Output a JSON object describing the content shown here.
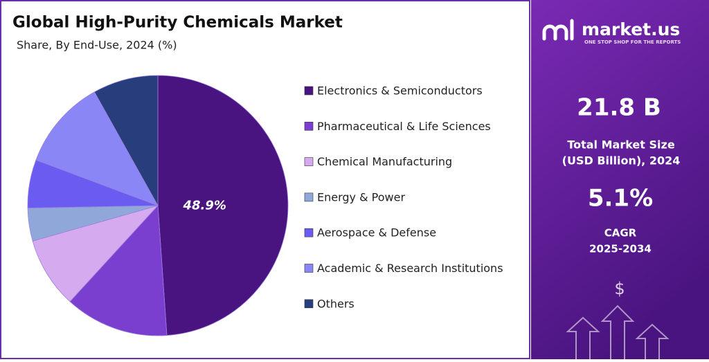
{
  "chart_data": {
    "type": "pie",
    "title": "Global High-Purity Chemicals Market",
    "subtitle": "Share, By End-Use, 2024 (%)",
    "categories": [
      "Electronics & Semiconductors",
      "Pharmaceutical & Life Sciences",
      "Chemical Manufacturing",
      "Energy & Power",
      "Aerospace & Defense",
      "Academic & Research Institutions",
      "Others"
    ],
    "values": [
      48.9,
      12.9,
      8.8,
      4.1,
      6.0,
      11.2,
      8.1
    ],
    "value_labels": [
      "48.9%",
      null,
      null,
      null,
      null,
      null,
      null
    ],
    "colors": [
      "#4a1480",
      "#7b3fcf",
      "#d6aaef",
      "#8fa8d9",
      "#6a5cf0",
      "#8b86f6",
      "#283d7c"
    ]
  },
  "panel": {
    "brand": "market.us",
    "tagline": "ONE STOP SHOP FOR THE REPORTS",
    "market_size": "21.8 B",
    "market_size_label_1": "Total Market Size",
    "market_size_label_2": "(USD Billion), 2024",
    "cagr": "5.1%",
    "cagr_label": "CAGR",
    "cagr_period": "2025-2034"
  }
}
